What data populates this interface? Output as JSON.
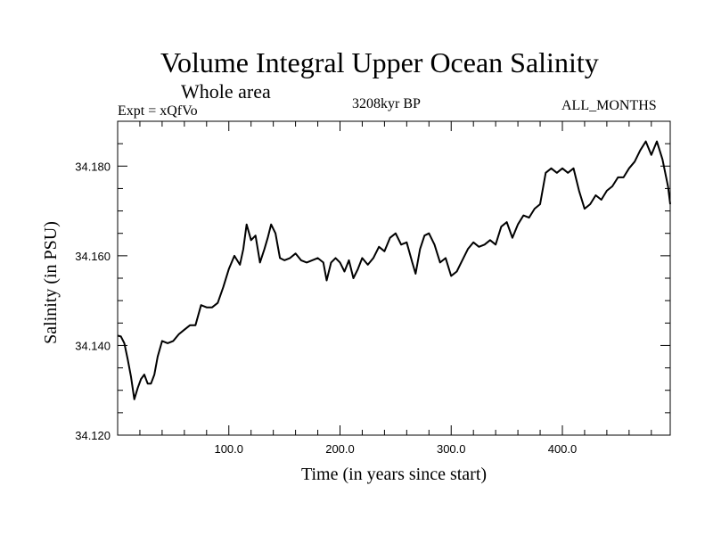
{
  "header": {
    "title": "Volume Integral Upper Ocean Salinity",
    "subtitle": "Whole area",
    "experiment": "Expt = xQfVo",
    "period": "3208kyr BP",
    "months": "ALL_MONTHS"
  },
  "chart_data": {
    "type": "line",
    "title": "Volume Integral Upper Ocean Salinity",
    "subtitle": "Whole area",
    "xlabel": "Time (in years since start)",
    "ylabel": "Salinity (in PSU)",
    "xlim": [
      0,
      497
    ],
    "ylim": [
      34.12,
      34.19
    ],
    "x_ticks": [
      100,
      200,
      300,
      400
    ],
    "x_tick_labels": [
      "100.0",
      "200.0",
      "300.0",
      "400.0"
    ],
    "y_ticks": [
      34.12,
      34.14,
      34.16,
      34.18
    ],
    "y_tick_labels": [
      "34.120",
      "34.140",
      "34.160",
      "34.180"
    ],
    "grid": false,
    "series": [
      {
        "name": "Salinity",
        "color": "#000000",
        "x": [
          0,
          3,
          6,
          9,
          12,
          15,
          18,
          21,
          24,
          27,
          30,
          33,
          36,
          40,
          45,
          50,
          55,
          60,
          65,
          70,
          75,
          80,
          85,
          90,
          95,
          100,
          105,
          110,
          113,
          116,
          120,
          124,
          128,
          132,
          135,
          138,
          142,
          146,
          150,
          155,
          160,
          165,
          170,
          175,
          180,
          185,
          188,
          192,
          196,
          200,
          204,
          208,
          212,
          216,
          220,
          225,
          230,
          235,
          240,
          245,
          250,
          255,
          260,
          265,
          268,
          272,
          276,
          280,
          285,
          290,
          295,
          300,
          305,
          310,
          315,
          320,
          325,
          330,
          335,
          340,
          345,
          350,
          355,
          360,
          365,
          370,
          375,
          380,
          385,
          390,
          395,
          400,
          405,
          410,
          415,
          420,
          425,
          430,
          435,
          440,
          445,
          450,
          455,
          460,
          465,
          470,
          475,
          480,
          485,
          490,
          495,
          497
        ],
        "values": [
          34.1422,
          34.142,
          34.1405,
          34.137,
          34.133,
          34.128,
          34.1305,
          34.1325,
          34.1335,
          34.1315,
          34.1315,
          34.1335,
          34.1375,
          34.141,
          34.1405,
          34.141,
          34.1425,
          34.1435,
          34.1445,
          34.1445,
          34.149,
          34.1485,
          34.1485,
          34.1495,
          34.153,
          34.157,
          34.16,
          34.158,
          34.1615,
          34.167,
          34.1635,
          34.1645,
          34.1585,
          34.1615,
          34.164,
          34.167,
          34.165,
          34.1595,
          34.159,
          34.1595,
          34.1605,
          34.159,
          34.1585,
          34.159,
          34.1595,
          34.1585,
          34.1545,
          34.1585,
          34.1595,
          34.1585,
          34.1565,
          34.159,
          34.155,
          34.157,
          34.1595,
          34.158,
          34.1595,
          34.162,
          34.161,
          34.164,
          34.165,
          34.1625,
          34.163,
          34.1585,
          34.156,
          34.1615,
          34.1645,
          34.165,
          34.1625,
          34.1585,
          34.1595,
          34.1555,
          34.1565,
          34.159,
          34.1615,
          34.163,
          34.162,
          34.1625,
          34.1635,
          34.1625,
          34.1665,
          34.1675,
          34.164,
          34.167,
          34.169,
          34.1685,
          34.1705,
          34.1715,
          34.1785,
          34.1795,
          34.1785,
          34.1795,
          34.1785,
          34.1795,
          34.1745,
          34.1705,
          34.1715,
          34.1735,
          34.1725,
          34.1745,
          34.1755,
          34.1775,
          34.1775,
          34.1795,
          34.181,
          34.1835,
          34.1855,
          34.1825,
          34.1855,
          34.1815,
          34.1755,
          34.1715
        ]
      }
    ]
  }
}
